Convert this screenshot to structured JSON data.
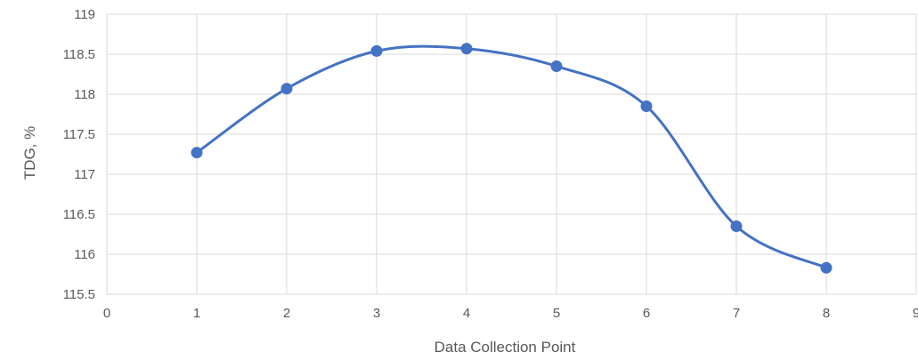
{
  "chart_data": {
    "type": "scatter",
    "title": "",
    "xlabel": "Data Collection Point",
    "ylabel": "TDG, %",
    "xlim": [
      0,
      9
    ],
    "ylim": [
      115.5,
      119
    ],
    "xticks": [
      0,
      1,
      2,
      3,
      4,
      5,
      6,
      7,
      8,
      9
    ],
    "yticks": [
      115.5,
      116,
      116.5,
      117,
      117.5,
      118,
      118.5,
      119
    ],
    "grid": true,
    "smooth_line": true,
    "line_color": "#4472c4",
    "series": [
      {
        "x": [
          1,
          2,
          3,
          4,
          5,
          6,
          7,
          8
        ],
        "values": [
          117.27,
          118.07,
          118.54,
          118.57,
          118.35,
          117.85,
          116.35,
          115.83
        ]
      }
    ]
  }
}
